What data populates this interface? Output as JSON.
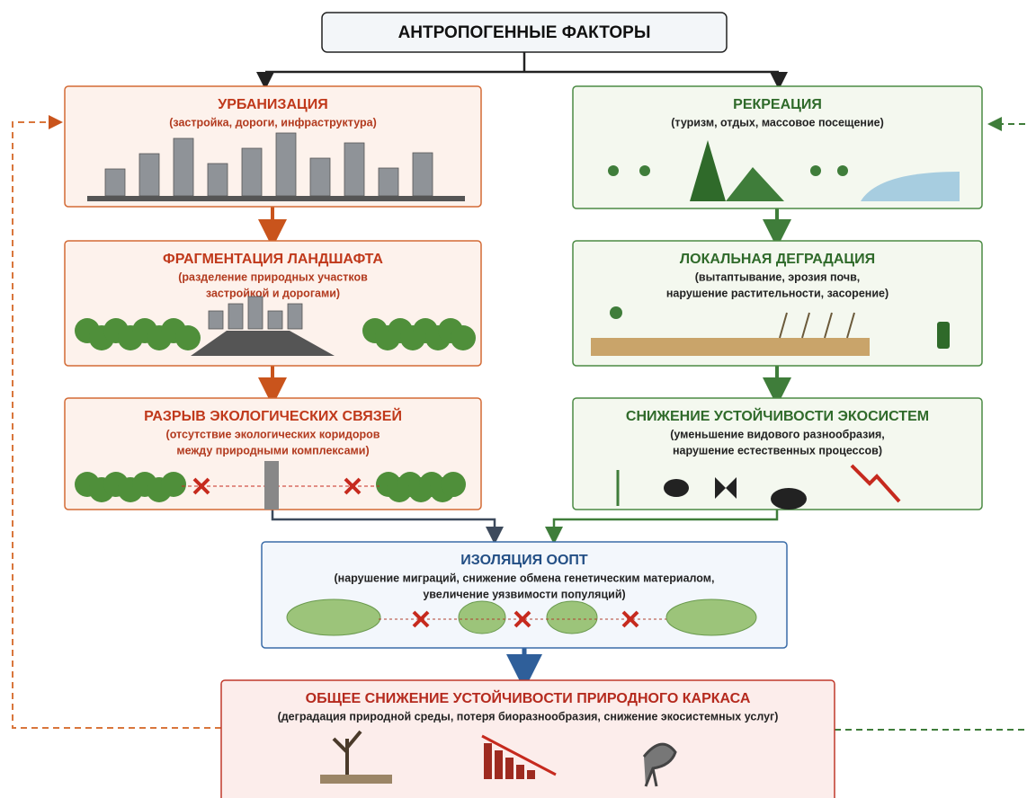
{
  "header": {
    "title": "АНТРОПОГЕННЫЕ ФАКТОРЫ"
  },
  "nodes": [
    {
      "title": "УРБАНИЗАЦИЯ",
      "subtitle": [
        "(застройка, дороги, инфраструктура)"
      ]
    },
    {
      "title": "ФРАГМЕНТАЦИЯ ЛАНДШАФТА",
      "subtitle": [
        "(разделение природных участков",
        "застройкой и дорогами)"
      ]
    },
    {
      "title": "РАЗРЫВ ЭКОЛОГИЧЕСКИХ СВЯЗЕЙ",
      "subtitle": [
        "(отсутствие экологических коридоров",
        "между природными комплексами)"
      ]
    },
    {
      "title": "РЕКРЕАЦИЯ",
      "subtitle": [
        "(туризм, отдых, массовое посещение)"
      ]
    },
    {
      "title": "ЛОКАЛЬНАЯ ДЕГРАДАЦИЯ",
      "subtitle": [
        "(вытаптывание, эрозия почв,",
        "нарушение растительности, засорение)"
      ]
    },
    {
      "title": "СНИЖЕНИЕ УСТОЙЧИВОСТИ ЭКОСИСТЕМ",
      "subtitle": [
        "(уменьшение видового разнообразия,",
        "нарушение естественных процессов)"
      ]
    },
    {
      "title": "ИЗОЛЯЦИЯ ООПТ",
      "subtitle": [
        "(нарушение миграций, снижение обмена генетическим материалом,",
        "увеличение уязвимости популяций)"
      ]
    },
    {
      "title": "ОБЩЕЕ СНИЖЕНИЕ УСТОЙЧИВОСТИ ПРИРОДНОГО КАРКАСА",
      "subtitle": [
        "(деградация природной среды, потеря биоразнообразия, снижение экосистемных услуг)"
      ]
    }
  ]
}
